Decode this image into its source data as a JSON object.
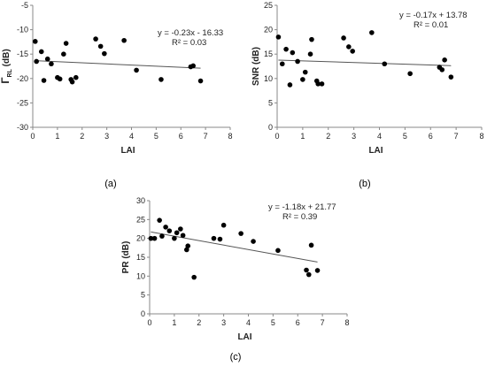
{
  "chart_data": [
    {
      "type": "scatter",
      "panel": "(a)",
      "xlabel": "LAI",
      "ylabel_main": "Γ",
      "ylabel_sub": "RL",
      "ylabel_unit": " (dB)",
      "xlim": [
        0,
        8
      ],
      "ylim": [
        -30,
        -5
      ],
      "xticks": [
        0,
        1,
        2,
        3,
        4,
        5,
        6,
        7,
        8
      ],
      "yticks": [
        -30,
        -25,
        -20,
        -15,
        -10,
        -5
      ],
      "points": [
        [
          0.1,
          -12.4
        ],
        [
          0.15,
          -16.5
        ],
        [
          0.35,
          -14.5
        ],
        [
          0.45,
          -20.4
        ],
        [
          0.6,
          -16.0
        ],
        [
          0.75,
          -17.0
        ],
        [
          1.0,
          -19.8
        ],
        [
          1.1,
          -20.1
        ],
        [
          1.25,
          -15.0
        ],
        [
          1.35,
          -12.8
        ],
        [
          1.55,
          -20.2
        ],
        [
          1.6,
          -20.7
        ],
        [
          1.75,
          -19.8
        ],
        [
          2.55,
          -11.9
        ],
        [
          2.75,
          -13.4
        ],
        [
          2.9,
          -14.9
        ],
        [
          3.7,
          -12.2
        ],
        [
          4.2,
          -18.3
        ],
        [
          5.2,
          -20.2
        ],
        [
          6.4,
          -17.6
        ],
        [
          6.5,
          -17.4
        ],
        [
          6.8,
          -20.5
        ]
      ],
      "trend_x": [
        0.1,
        6.8
      ],
      "equation": "y = -0.23x - 16.33",
      "r2": "R² = 0.03"
    },
    {
      "type": "scatter",
      "panel": "(b)",
      "xlabel": "LAI",
      "ylabel": "SNR (dB)",
      "xlim": [
        0,
        8
      ],
      "ylim": [
        0,
        25
      ],
      "xticks": [
        0,
        1,
        2,
        3,
        4,
        5,
        6,
        7,
        8
      ],
      "yticks": [
        0,
        5,
        10,
        15,
        20,
        25
      ],
      "points": [
        [
          0.05,
          18.5
        ],
        [
          0.2,
          13.0
        ],
        [
          0.35,
          16.0
        ],
        [
          0.5,
          8.7
        ],
        [
          0.6,
          15.3
        ],
        [
          0.8,
          13.5
        ],
        [
          1.0,
          9.8
        ],
        [
          1.1,
          11.3
        ],
        [
          1.3,
          15.0
        ],
        [
          1.35,
          18.0
        ],
        [
          1.55,
          9.5
        ],
        [
          1.6,
          8.9
        ],
        [
          1.75,
          8.9
        ],
        [
          2.6,
          18.3
        ],
        [
          2.8,
          16.5
        ],
        [
          2.95,
          15.6
        ],
        [
          3.7,
          19.4
        ],
        [
          4.2,
          13.0
        ],
        [
          5.2,
          11.0
        ],
        [
          6.35,
          12.3
        ],
        [
          6.45,
          11.8
        ],
        [
          6.55,
          13.8
        ],
        [
          6.8,
          10.3
        ]
      ],
      "trend_x": [
        0.05,
        6.8
      ],
      "equation": "y = -0.17x + 13.78",
      "r2": "R² = 0.01"
    },
    {
      "type": "scatter",
      "panel": "(c)",
      "xlabel": "LAI",
      "ylabel": "PR (dB)",
      "xlim": [
        0,
        8
      ],
      "ylim": [
        0,
        30
      ],
      "xticks": [
        0,
        1,
        2,
        3,
        4,
        5,
        6,
        7,
        8
      ],
      "yticks": [
        0,
        5,
        10,
        15,
        20,
        25,
        30
      ],
      "points": [
        [
          0.05,
          20.0
        ],
        [
          0.2,
          20.0
        ],
        [
          0.4,
          24.8
        ],
        [
          0.5,
          20.6
        ],
        [
          0.65,
          23.0
        ],
        [
          0.8,
          22.0
        ],
        [
          1.0,
          20.0
        ],
        [
          1.1,
          21.5
        ],
        [
          1.25,
          22.5
        ],
        [
          1.35,
          20.8
        ],
        [
          1.5,
          17.0
        ],
        [
          1.55,
          18.0
        ],
        [
          1.8,
          9.7
        ],
        [
          2.6,
          20.0
        ],
        [
          2.85,
          19.8
        ],
        [
          3.0,
          23.5
        ],
        [
          3.7,
          21.3
        ],
        [
          4.2,
          19.2
        ],
        [
          5.2,
          16.8
        ],
        [
          6.35,
          11.6
        ],
        [
          6.45,
          10.4
        ],
        [
          6.55,
          18.2
        ],
        [
          6.8,
          11.5
        ]
      ],
      "trend_x": [
        0.05,
        6.8
      ],
      "equation": "y = -1.18x + 21.77",
      "r2": "R² = 0.39"
    }
  ]
}
